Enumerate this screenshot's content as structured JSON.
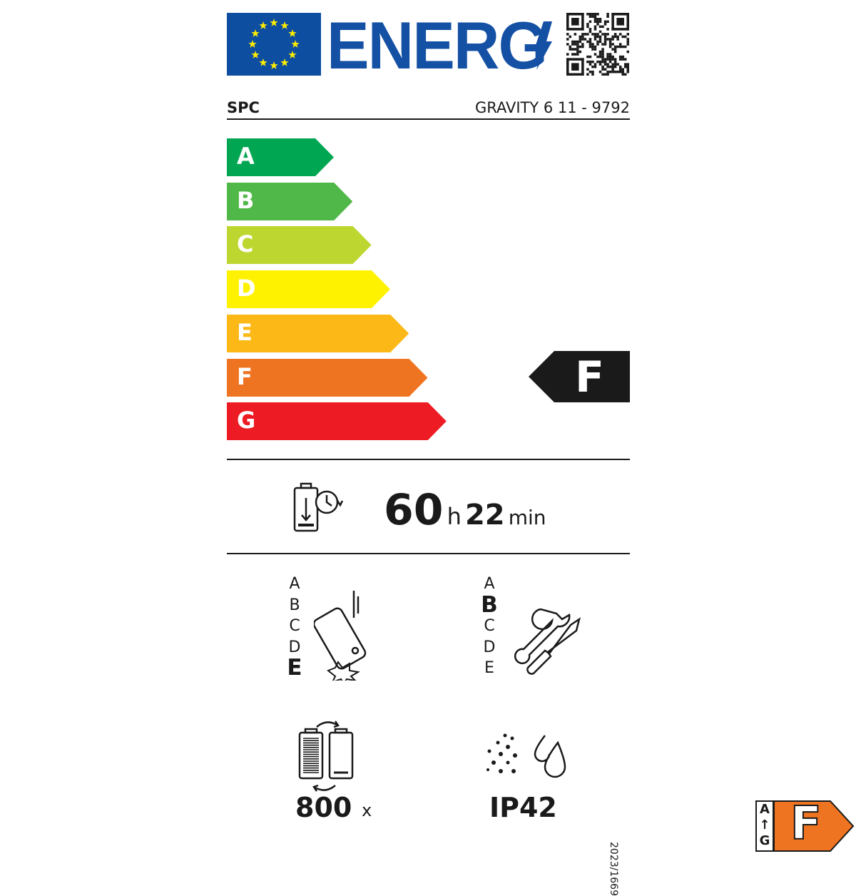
{
  "header": {
    "energy_label": "ENERG",
    "supplier": "SPC",
    "model": "GRAVITY 6 11 - 9792"
  },
  "scale": {
    "classes": [
      "A",
      "B",
      "C",
      "D",
      "E",
      "F",
      "G"
    ],
    "colors": [
      "#00a651",
      "#50b848",
      "#bed630",
      "#fff200",
      "#fcb816",
      "#ef7422",
      "#ed1c24"
    ],
    "rated_class": "F"
  },
  "battery_endurance": {
    "hours": "60",
    "hours_unit": "h",
    "minutes": "22",
    "minutes_unit": "min"
  },
  "drop_resistance": {
    "classes": [
      "A",
      "B",
      "C",
      "D",
      "E"
    ],
    "rated": "E"
  },
  "repairability": {
    "classes": [
      "A",
      "B",
      "C",
      "D",
      "E"
    ],
    "rated": "B"
  },
  "battery_cycles": {
    "value": "800",
    "unit": "x"
  },
  "ingress_protection": {
    "value": "IP42"
  },
  "regulation": "2023/1669",
  "badge": {
    "top": "A",
    "bottom": "G",
    "class": "F",
    "color": "#ef7422"
  }
}
